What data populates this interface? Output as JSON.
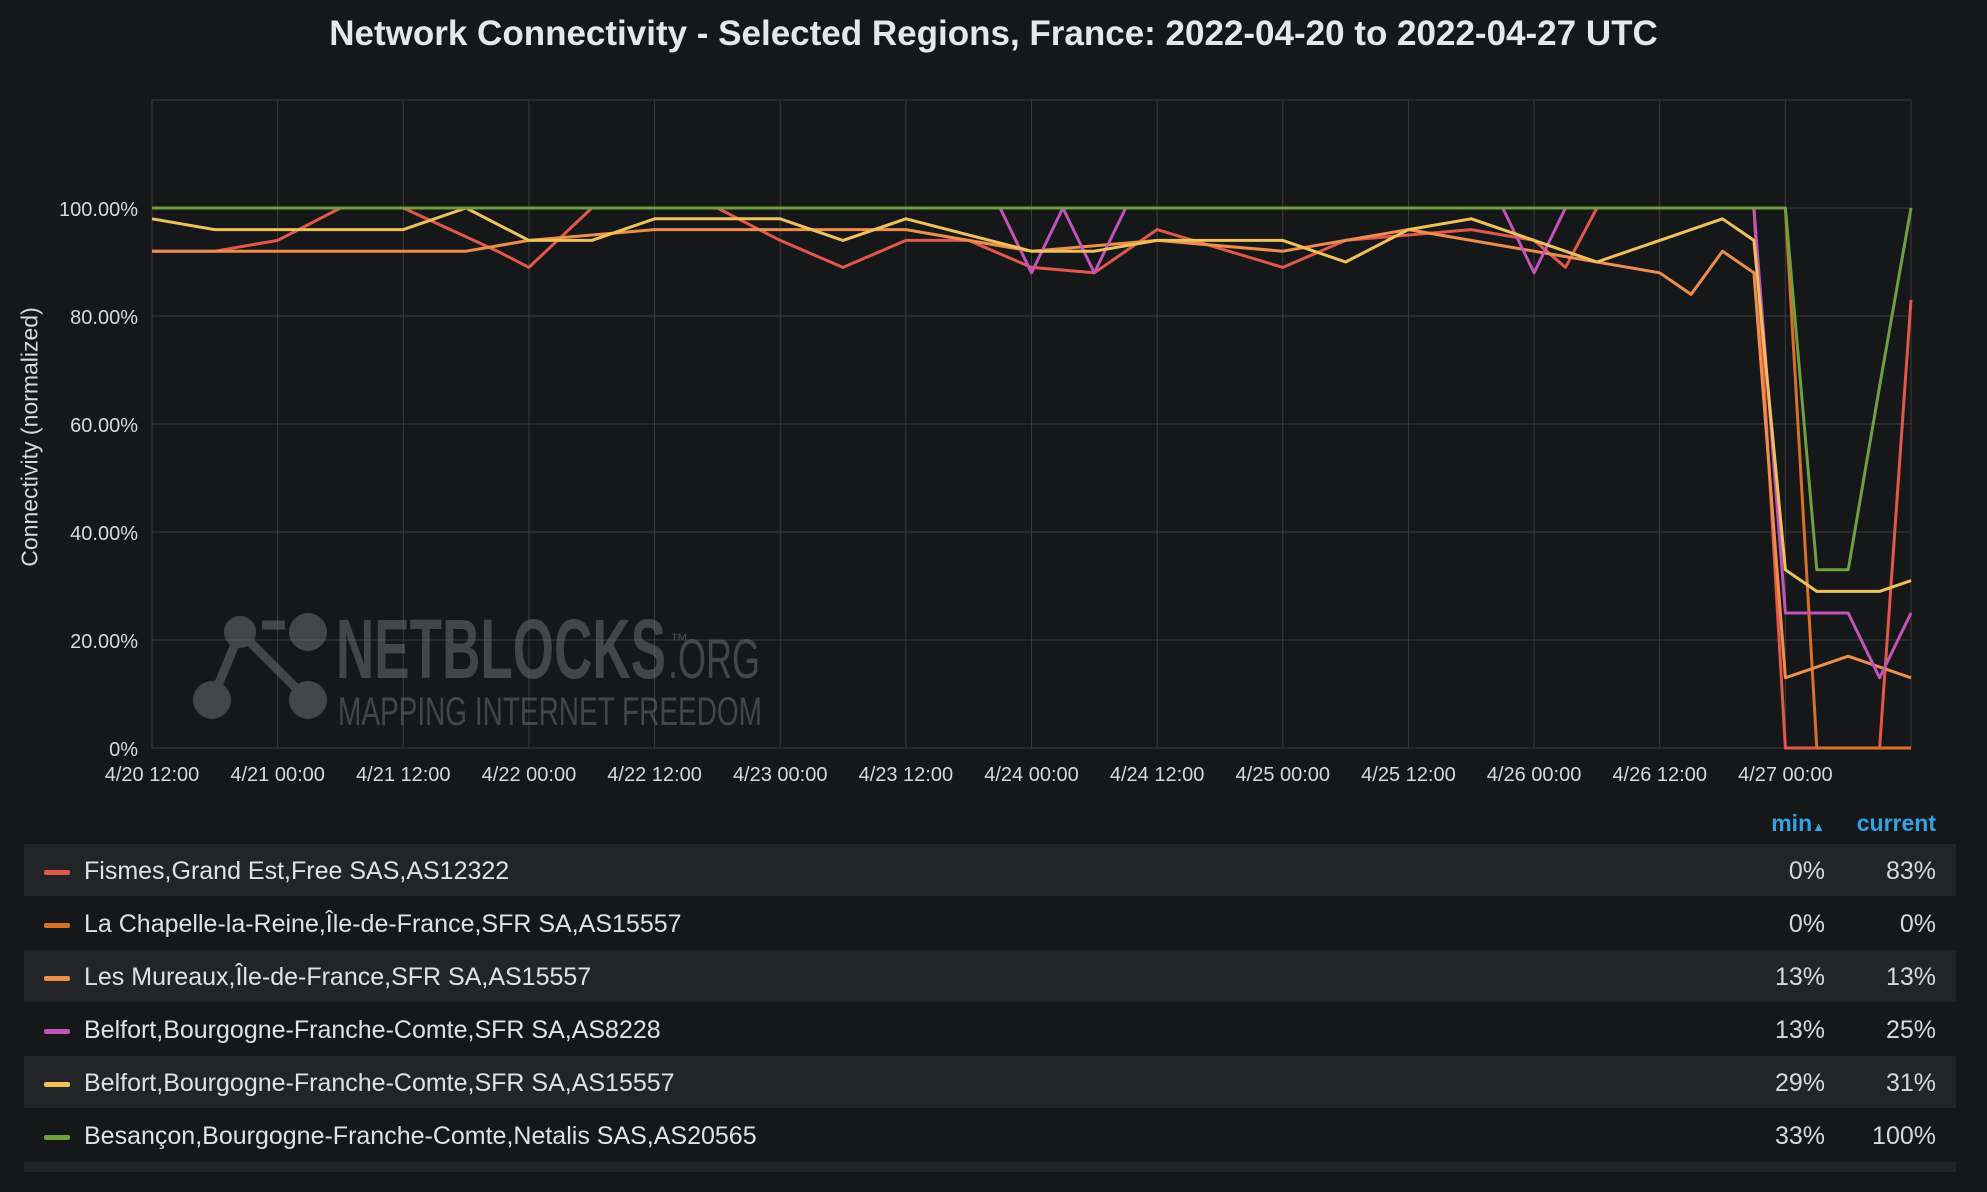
{
  "chart_data": {
    "type": "line",
    "title": "Network Connectivity - Selected Regions, France: 2022-04-20 to 2022-04-27 UTC",
    "ylabel": "Connectivity (normalized)",
    "xlabel": "",
    "ylim": [
      0,
      1.2
    ],
    "y_ticks": [
      "0%",
      "20.00%",
      "40.00%",
      "60.00%",
      "80.00%",
      "100.00%"
    ],
    "x_ticks": [
      "4/20 12:00",
      "4/21 00:00",
      "4/21 12:00",
      "4/22 00:00",
      "4/22 12:00",
      "4/23 00:00",
      "4/23 12:00",
      "4/24 00:00",
      "4/24 12:00",
      "4/25 00:00",
      "4/25 12:00",
      "4/26 00:00",
      "4/26 12:00",
      "4/27 00:00"
    ],
    "x_start": "2022-04-20 12:00",
    "x_end": "2022-04-27 12:00",
    "grid": true,
    "legend_placement": "bottom",
    "series": [
      {
        "name": "Fismes,Grand Est,Free SAS,AS12322",
        "color": "#e0584a",
        "points": [
          [
            "4/20 12:00",
            0.92
          ],
          [
            "4/20 18:00",
            0.92
          ],
          [
            "4/21 00:00",
            0.94
          ],
          [
            "4/21 06:00",
            1.0
          ],
          [
            "4/21 12:00",
            1.0
          ],
          [
            "4/21 21:00",
            0.92
          ],
          [
            "4/22 00:00",
            0.89
          ],
          [
            "4/22 06:00",
            1.0
          ],
          [
            "4/22 18:00",
            1.0
          ],
          [
            "4/23 00:00",
            0.94
          ],
          [
            "4/23 06:00",
            0.89
          ],
          [
            "4/23 12:00",
            0.94
          ],
          [
            "4/23 18:00",
            0.94
          ],
          [
            "4/24 00:00",
            0.89
          ],
          [
            "4/24 06:00",
            0.88
          ],
          [
            "4/24 12:00",
            0.96
          ],
          [
            "4/25 00:00",
            0.89
          ],
          [
            "4/25 06:00",
            0.94
          ],
          [
            "4/25 18:00",
            0.96
          ],
          [
            "4/26 00:00",
            0.94
          ],
          [
            "4/26 03:00",
            0.89
          ],
          [
            "4/26 06:00",
            1.0
          ],
          [
            "4/26 21:00",
            1.0
          ],
          [
            "4/27 00:00",
            0
          ],
          [
            "4/27 09:00",
            0
          ],
          [
            "4/27 12:00",
            0.83
          ]
        ]
      },
      {
        "name": "La Chapelle-la-Reine,Île-de-France,SFR SA,AS15557",
        "color": "#d9702a",
        "points": [
          [
            "4/20 12:00",
            1.0
          ],
          [
            "4/26 21:00",
            1.0
          ],
          [
            "4/27 00:00",
            1.0
          ],
          [
            "4/27 03:00",
            0
          ],
          [
            "4/27 12:00",
            0
          ]
        ]
      },
      {
        "name": "Les Mureaux,Île-de-France,SFR SA,AS15557",
        "color": "#ed8f4c",
        "points": [
          [
            "4/20 12:00",
            0.92
          ],
          [
            "4/20 18:00",
            0.92
          ],
          [
            "4/21 00:00",
            0.92
          ],
          [
            "4/21 12:00",
            0.92
          ],
          [
            "4/21 18:00",
            0.92
          ],
          [
            "4/22 00:00",
            0.94
          ],
          [
            "4/22 12:00",
            0.96
          ],
          [
            "4/23 00:00",
            0.96
          ],
          [
            "4/23 12:00",
            0.96
          ],
          [
            "4/24 00:00",
            0.92
          ],
          [
            "4/24 12:00",
            0.94
          ],
          [
            "4/25 00:00",
            0.92
          ],
          [
            "4/25 12:00",
            0.96
          ],
          [
            "4/26 00:00",
            0.92
          ],
          [
            "4/26 12:00",
            0.88
          ],
          [
            "4/26 15:00",
            0.84
          ],
          [
            "4/26 18:00",
            0.92
          ],
          [
            "4/26 21:00",
            0.88
          ],
          [
            "4/27 00:00",
            0.13
          ],
          [
            "4/27 06:00",
            0.17
          ],
          [
            "4/27 12:00",
            0.13
          ]
        ]
      },
      {
        "name": "Belfort,Bourgogne-Franche-Comte,SFR SA,AS8228",
        "color": "#c054b8",
        "points": [
          [
            "4/20 12:00",
            1.0
          ],
          [
            "4/23 21:00",
            1.0
          ],
          [
            "4/24 00:00",
            0.88
          ],
          [
            "4/24 03:00",
            1.0
          ],
          [
            "4/24 06:00",
            0.88
          ],
          [
            "4/24 09:00",
            1.0
          ],
          [
            "4/25 21:00",
            1.0
          ],
          [
            "4/26 00:00",
            0.88
          ],
          [
            "4/26 03:00",
            1.0
          ],
          [
            "4/26 21:00",
            1.0
          ],
          [
            "4/27 00:00",
            0.25
          ],
          [
            "4/27 06:00",
            0.25
          ],
          [
            "4/27 09:00",
            0.13
          ],
          [
            "4/27 12:00",
            0.25
          ]
        ]
      },
      {
        "name": "Belfort,Bourgogne-Franche-Comte,SFR SA,AS15557",
        "color": "#eec15a",
        "points": [
          [
            "4/20 12:00",
            0.98
          ],
          [
            "4/20 18:00",
            0.96
          ],
          [
            "4/21 00:00",
            0.96
          ],
          [
            "4/21 06:00",
            0.96
          ],
          [
            "4/21 12:00",
            0.96
          ],
          [
            "4/21 18:00",
            1.0
          ],
          [
            "4/22 00:00",
            0.94
          ],
          [
            "4/22 06:00",
            0.94
          ],
          [
            "4/22 12:00",
            0.98
          ],
          [
            "4/23 00:00",
            0.98
          ],
          [
            "4/23 06:00",
            0.94
          ],
          [
            "4/23 12:00",
            0.98
          ],
          [
            "4/24 00:00",
            0.92
          ],
          [
            "4/24 06:00",
            0.92
          ],
          [
            "4/24 12:00",
            0.94
          ],
          [
            "4/25 00:00",
            0.94
          ],
          [
            "4/25 06:00",
            0.9
          ],
          [
            "4/25 12:00",
            0.96
          ],
          [
            "4/25 18:00",
            0.98
          ],
          [
            "4/26 00:00",
            0.94
          ],
          [
            "4/26 06:00",
            0.9
          ],
          [
            "4/26 12:00",
            0.94
          ],
          [
            "4/26 18:00",
            0.98
          ],
          [
            "4/26 21:00",
            0.94
          ],
          [
            "4/27 00:00",
            0.33
          ],
          [
            "4/27 03:00",
            0.29
          ],
          [
            "4/27 09:00",
            0.29
          ],
          [
            "4/27 12:00",
            0.31
          ]
        ]
      },
      {
        "name": "Besançon,Bourgogne-Franche-Comte,Netalis SAS,AS20565",
        "color": "#6ea040",
        "points": [
          [
            "4/20 12:00",
            1.0
          ],
          [
            "4/26 21:00",
            1.0
          ],
          [
            "4/27 00:00",
            1.0
          ],
          [
            "4/27 03:00",
            0.33
          ],
          [
            "4/27 06:00",
            0.33
          ],
          [
            "4/27 09:00",
            0.67
          ],
          [
            "4/27 12:00",
            1.0
          ]
        ]
      }
    ]
  },
  "legend": {
    "header_min": "min",
    "header_current": "current",
    "rows": [
      {
        "name": "Fismes,Grand Est,Free SAS,AS12322",
        "min": "0%",
        "current": "83%",
        "color": "#e0584a"
      },
      {
        "name": "La Chapelle-la-Reine,Île-de-France,SFR SA,AS15557",
        "min": "0%",
        "current": "0%",
        "color": "#d9702a"
      },
      {
        "name": "Les Mureaux,Île-de-France,SFR SA,AS15557",
        "min": "13%",
        "current": "13%",
        "color": "#ed8f4c"
      },
      {
        "name": "Belfort,Bourgogne-Franche-Comte,SFR SA,AS8228",
        "min": "13%",
        "current": "25%",
        "color": "#c054b8"
      },
      {
        "name": "Belfort,Bourgogne-Franche-Comte,SFR SA,AS15557",
        "min": "29%",
        "current": "31%",
        "color": "#eec15a"
      },
      {
        "name": "Besançon,Bourgogne-Franche-Comte,Netalis SAS,AS20565",
        "min": "33%",
        "current": "100%",
        "color": "#6ea040"
      }
    ]
  },
  "watermark": {
    "brand": "NETBLOCKS",
    "tld": ".ORG",
    "tm": "™",
    "tagline": "MAPPING INTERNET FREEDOM"
  },
  "sort_icon": "sort-up-icon"
}
